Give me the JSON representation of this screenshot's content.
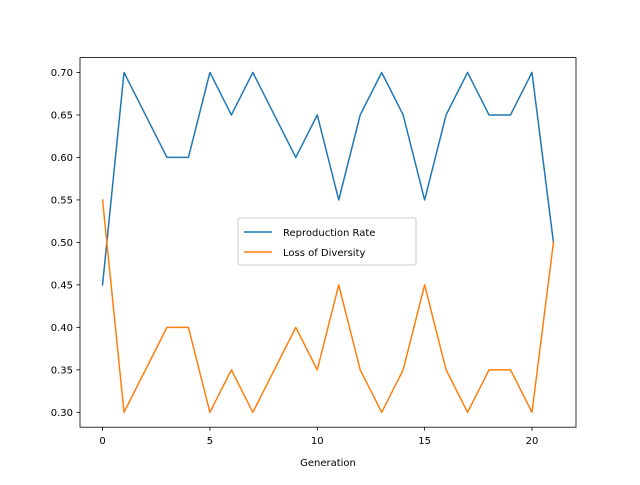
{
  "chart_data": {
    "type": "line",
    "title": "",
    "xlabel": "Generation",
    "ylabel": "",
    "x": [
      0,
      1,
      2,
      3,
      4,
      5,
      6,
      7,
      8,
      9,
      10,
      11,
      12,
      13,
      14,
      15,
      16,
      17,
      18,
      19,
      20,
      21
    ],
    "xlim": [
      -1.05,
      22.05
    ],
    "ylim": [
      0.2825,
      0.7175
    ],
    "xticks": [
      0,
      5,
      10,
      15,
      20
    ],
    "xtick_labels": [
      "0",
      "5",
      "10",
      "15",
      "20"
    ],
    "yticks": [
      0.3,
      0.35,
      0.4,
      0.45,
      0.5,
      0.55,
      0.6,
      0.65,
      0.7
    ],
    "ytick_labels": [
      "0.30",
      "0.35",
      "0.40",
      "0.45",
      "0.50",
      "0.55",
      "0.60",
      "0.65",
      "0.70"
    ],
    "grid": false,
    "legend_position": "center",
    "series": [
      {
        "name": "Reproduction Rate",
        "color": "#1f77b4",
        "values": [
          0.45,
          0.7,
          0.65,
          0.6,
          0.6,
          0.7,
          0.65,
          0.7,
          0.65,
          0.6,
          0.65,
          0.55,
          0.65,
          0.7,
          0.65,
          0.55,
          0.65,
          0.7,
          0.65,
          0.65,
          0.7,
          0.5
        ]
      },
      {
        "name": "Loss of Diversity",
        "color": "#ff7f0e",
        "values": [
          0.55,
          0.3,
          0.35,
          0.4,
          0.4,
          0.3,
          0.35,
          0.3,
          0.35,
          0.4,
          0.35,
          0.45,
          0.35,
          0.3,
          0.35,
          0.45,
          0.35,
          0.3,
          0.35,
          0.35,
          0.3,
          0.5
        ]
      }
    ]
  }
}
